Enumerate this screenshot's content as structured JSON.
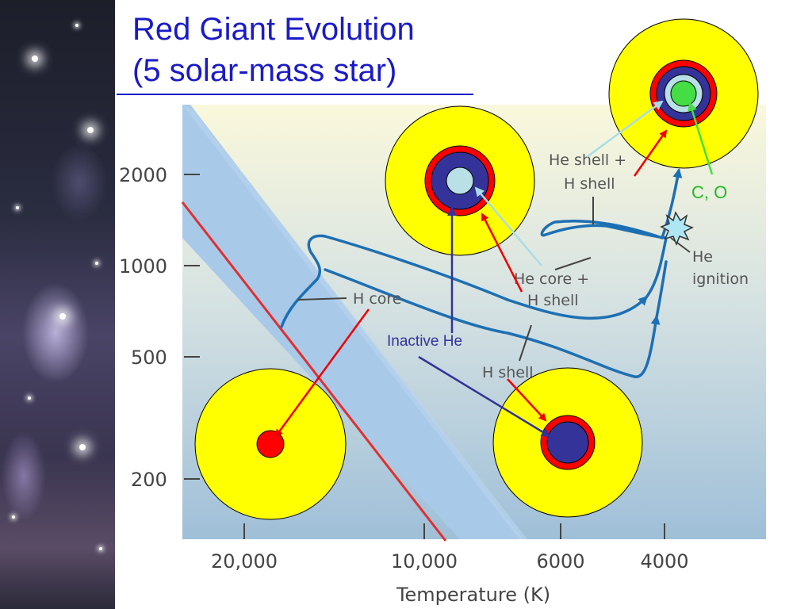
{
  "slide": {
    "title_line1": "Red Giant Evolution",
    "title_line2": "(5 solar-mass star)"
  },
  "colors": {
    "title": "#1a1ac8",
    "track": "#1d6fb3",
    "main_sequence_line": "#e03030",
    "envelope": "#ffff00",
    "shell": "#ff0000",
    "inactive_core": "#333399",
    "he_core": "#b8e0e6",
    "co_core": "#44dd44"
  },
  "chart_data": {
    "type": "diagram",
    "y_ticks": [
      "2000",
      "1000",
      "500",
      "200"
    ],
    "x_ticks": [
      "20,000",
      "10,000",
      "6000",
      "4000"
    ],
    "xlabel": "Temperature (K)",
    "labels": {
      "h_core": "H core",
      "he_core_h_shell_1": "He core +",
      "he_core_h_shell_2": "H shell",
      "h_shell": "H shell",
      "he_shell_h_shell_1": "He shell +",
      "he_shell_h_shell_2": "H shell",
      "he_ignition_1": "He",
      "he_ignition_2": "ignition",
      "inactive_he": "Inactive He",
      "co": "C, O"
    }
  }
}
